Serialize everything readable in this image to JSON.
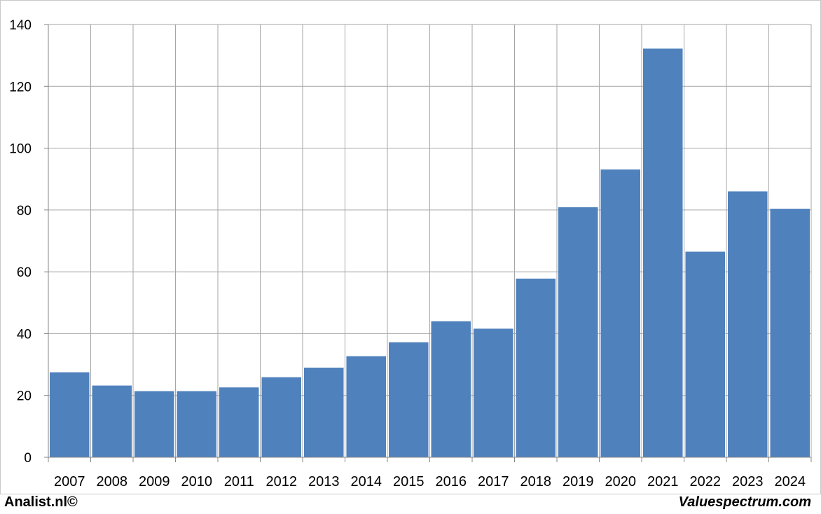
{
  "chart_data": {
    "type": "bar",
    "categories": [
      "2007",
      "2008",
      "2009",
      "2010",
      "2011",
      "2012",
      "2013",
      "2014",
      "2015",
      "2016",
      "2017",
      "2018",
      "2019",
      "2020",
      "2021",
      "2022",
      "2023",
      "2024"
    ],
    "values": [
      27.5,
      23.2,
      21.4,
      21.4,
      22.6,
      25.9,
      29.0,
      32.7,
      37.2,
      44.0,
      41.6,
      57.8,
      80.9,
      93.1,
      132.2,
      66.5,
      86.0,
      80.4
    ],
    "title": "",
    "xlabel": "",
    "ylabel": "",
    "ylim": [
      0,
      140
    ],
    "yticks": [
      "0",
      "20",
      "40",
      "60",
      "80",
      "100",
      "120",
      "140"
    ],
    "grid": true,
    "bar_color": "#4f81bd"
  },
  "footer": {
    "left": "Analist.nl©",
    "right": "Valuespectrum.com"
  }
}
